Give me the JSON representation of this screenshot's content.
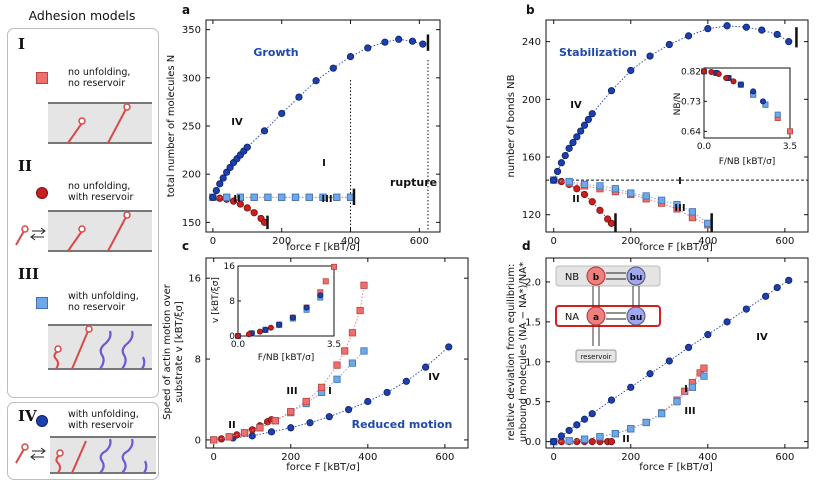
{
  "legend": {
    "title": "Adhesion models",
    "models": [
      {
        "numeral": "I",
        "line1": "no unfolding,",
        "line2": "no reservoir"
      },
      {
        "numeral": "II",
        "line1": "no unfolding,",
        "line2": "with reservoir"
      },
      {
        "numeral": "III",
        "line1": "with unfolding,",
        "line2": "no reservoir"
      },
      {
        "numeral": "IV",
        "line1": "with unfolding,",
        "line2": "with reservoir"
      }
    ]
  },
  "colors": {
    "I": "#ef6f6c",
    "II": "#c81f1f",
    "III": "#6ea8e8",
    "IV": "#1d3fb0",
    "annot": "#1f4aa8"
  },
  "panels": {
    "a": {
      "letter": "a",
      "annotation": "Growth",
      "ylabel": "total number of molecules N",
      "xlabel": "force F [kBT/σ]",
      "yticks": [
        "150",
        "200",
        "250",
        "300",
        "350"
      ],
      "xticks": [
        "0",
        "200",
        "400",
        "600"
      ],
      "labels": {
        "I": "I",
        "II": "II",
        "III": "III",
        "IV": "IV"
      },
      "rupture": "rupture"
    },
    "b": {
      "letter": "b",
      "annotation": "Stabilization",
      "ylabel": "number of bonds NB",
      "xlabel": "force F [kBT/σ]",
      "yticks": [
        "120",
        "160",
        "200",
        "240"
      ],
      "xticks": [
        "0",
        "200",
        "400",
        "600"
      ],
      "labels": {
        "I": "I",
        "II": "II",
        "III": "III",
        "IV": "IV"
      },
      "inset": {
        "ylabel": "NB/N",
        "xlabel": "F/NB [kBT/σ]",
        "yticks": [
          "0.64",
          "0.73",
          "0.82"
        ],
        "xticks": [
          "0.0",
          "3.5"
        ]
      }
    },
    "c": {
      "letter": "c",
      "annotation": "Reduced motion",
      "ylabel1": "Speed of actin motion over",
      "ylabel2": "substrate v [kBT/ξσ]",
      "xlabel": "force F [kBT/σ]",
      "yticks": [
        "0",
        "8",
        "16"
      ],
      "xticks": [
        "0",
        "200",
        "400",
        "600"
      ],
      "labels": {
        "I": "I",
        "II": "II",
        "III": "III",
        "IV": "IV"
      },
      "inset": {
        "ylabel": "v [kBT/ξσ]",
        "xlabel": "F/NB [kBT/σ]",
        "yticks": [
          "0",
          "8",
          "16"
        ],
        "xticks": [
          "0.0",
          "3.5"
        ]
      }
    },
    "d": {
      "letter": "d",
      "ylabel1": "relative deviation from equilibrium:",
      "ylabel2": "unbound molecules (NA − NA*)/NA*",
      "xlabel": "force F [kBT/σ]",
      "yticks": [
        "0.0",
        "0.5",
        "1.0",
        "1.5",
        "2.0"
      ],
      "xticks": [
        "0",
        "200",
        "400",
        "600"
      ],
      "labels": {
        "I": "I",
        "II": "II",
        "III": "III",
        "IV": "IV"
      },
      "scheme": {
        "NB": "NB",
        "NA": "NA",
        "b": "b",
        "bu": "bu",
        "a": "a",
        "au": "au",
        "reservoir": "reservoir"
      }
    }
  },
  "chart_data": [
    {
      "type": "scatter",
      "panel": "a",
      "xlabel": "force F [kBT/σ]",
      "ylabel": "total number of molecules N",
      "xlim": [
        -20,
        660
      ],
      "ylim": [
        140,
        360
      ],
      "series": [
        {
          "name": "I",
          "x": [
            0,
            40,
            80,
            120,
            160,
            200,
            240,
            280,
            320,
            360,
            400
          ],
          "y": [
            176,
            176,
            176,
            176,
            176,
            176,
            176,
            176,
            176,
            176,
            176
          ]
        },
        {
          "name": "II",
          "x": [
            0,
            20,
            40,
            60,
            80,
            100,
            120,
            140,
            150
          ],
          "y": [
            176,
            175,
            174,
            172,
            169,
            165,
            160,
            154,
            150
          ]
        },
        {
          "name": "III",
          "x": [
            0,
            40,
            80,
            120,
            160,
            200,
            240,
            280,
            320,
            360,
            400
          ],
          "y": [
            176,
            176,
            176,
            176,
            176,
            176,
            176,
            176,
            176,
            176,
            176
          ]
        },
        {
          "name": "IV",
          "x": [
            0,
            10,
            20,
            30,
            40,
            50,
            60,
            70,
            80,
            90,
            100,
            150,
            200,
            250,
            300,
            350,
            400,
            450,
            500,
            540,
            580,
            610
          ],
          "y": [
            176,
            183,
            190,
            196,
            202,
            207,
            212,
            216,
            220,
            224,
            228,
            245,
            263,
            280,
            297,
            310,
            322,
            331,
            337,
            340,
            338,
            335
          ]
        }
      ]
    },
    {
      "type": "scatter",
      "panel": "b",
      "xlabel": "force F [kBT/σ]",
      "ylabel": "number of bonds NB",
      "xlim": [
        -20,
        660
      ],
      "ylim": [
        108,
        255
      ],
      "series": [
        {
          "name": "I",
          "x": [
            0,
            40,
            80,
            120,
            160,
            200,
            240,
            280,
            320,
            360,
            400
          ],
          "y": [
            144,
            142,
            140,
            138,
            136,
            134,
            131,
            128,
            124,
            118,
            113
          ]
        },
        {
          "name": "II",
          "x": [
            0,
            20,
            40,
            60,
            80,
            100,
            120,
            140,
            150
          ],
          "y": [
            144,
            143,
            141,
            138,
            134,
            129,
            123,
            117,
            114
          ]
        },
        {
          "name": "III",
          "x": [
            0,
            40,
            80,
            120,
            160,
            200,
            240,
            280,
            320,
            360,
            400
          ],
          "y": [
            144,
            143,
            141,
            140,
            138,
            135,
            133,
            130,
            127,
            122,
            114
          ]
        },
        {
          "name": "IV",
          "x": [
            0,
            10,
            20,
            30,
            40,
            50,
            60,
            70,
            80,
            90,
            100,
            150,
            200,
            250,
            300,
            350,
            400,
            450,
            500,
            540,
            580,
            610
          ],
          "y": [
            144,
            150,
            156,
            161,
            166,
            170,
            174,
            178,
            182,
            186,
            190,
            206,
            220,
            230,
            238,
            244,
            249,
            251,
            250,
            248,
            245,
            240
          ]
        }
      ],
      "inset": {
        "xlabel": "F/NB [kBT/σ]",
        "ylabel": "NB/N",
        "xlim": [
          0,
          3.5
        ],
        "ylim": [
          0.62,
          0.83
        ],
        "series": [
          {
            "name": "I",
            "x": [
              0.0,
              0.5,
              1.0,
              1.5,
              2.0,
              2.5,
              3.0,
              3.5
            ],
            "y": [
              0.82,
              0.815,
              0.8,
              0.78,
              0.75,
              0.72,
              0.68,
              0.64
            ]
          },
          {
            "name": "II",
            "x": [
              0.0,
              0.3,
              0.6,
              0.9,
              1.2
            ],
            "y": [
              0.82,
              0.818,
              0.812,
              0.8,
              0.79
            ]
          },
          {
            "name": "III",
            "x": [
              0.0,
              0.5,
              1.0,
              1.5,
              2.0,
              2.5,
              3.0
            ],
            "y": [
              0.82,
              0.815,
              0.8,
              0.78,
              0.75,
              0.72,
              0.69
            ]
          },
          {
            "name": "IV",
            "x": [
              0.0,
              0.5,
              1.0,
              1.5,
              2.0,
              2.4
            ],
            "y": [
              0.82,
              0.815,
              0.8,
              0.78,
              0.76,
              0.73
            ]
          }
        ]
      }
    },
    {
      "type": "scatter",
      "panel": "c",
      "xlabel": "force F [kBT/σ]",
      "ylabel": "Speed of actin motion over substrate v [kBT/ξσ]",
      "xlim": [
        -20,
        660
      ],
      "ylim": [
        -0.8,
        18
      ],
      "series": [
        {
          "name": "I",
          "x": [
            0,
            40,
            80,
            120,
            160,
            200,
            240,
            280,
            320,
            340,
            360,
            380,
            390
          ],
          "y": [
            0,
            0.3,
            0.7,
            1.2,
            1.9,
            2.8,
            3.8,
            5.2,
            7.4,
            8.8,
            10.6,
            12.8,
            15.3
          ]
        },
        {
          "name": "II",
          "x": [
            0,
            20,
            40,
            60,
            80,
            100,
            120,
            140,
            150
          ],
          "y": [
            0,
            0.1,
            0.3,
            0.5,
            0.7,
            1.0,
            1.4,
            1.8,
            2.0
          ]
        },
        {
          "name": "III",
          "x": [
            0,
            40,
            80,
            120,
            160,
            200,
            240,
            280,
            320,
            360,
            390
          ],
          "y": [
            0,
            0.3,
            0.7,
            1.2,
            1.9,
            2.7,
            3.6,
            4.7,
            6.0,
            7.6,
            8.8
          ]
        },
        {
          "name": "IV",
          "x": [
            0,
            50,
            100,
            150,
            200,
            250,
            300,
            350,
            400,
            450,
            500,
            550,
            610
          ],
          "y": [
            0,
            0.2,
            0.4,
            0.8,
            1.2,
            1.7,
            2.3,
            3.0,
            3.8,
            4.7,
            5.8,
            7.2,
            9.2
          ]
        }
      ],
      "inset": {
        "xlabel": "F/NB [kBT/σ]",
        "ylabel": "v [kBT/ξσ]",
        "xlim": [
          0,
          3.5
        ],
        "ylim": [
          0,
          16
        ],
        "series": [
          {
            "name": "I",
            "x": [
              0.0,
              0.5,
              1.0,
              1.5,
              2.0,
              2.5,
              3.0,
              3.2,
              3.5
            ],
            "y": [
              0,
              0.6,
              1.4,
              2.6,
              4.2,
              6.5,
              10.0,
              12.5,
              15.8
            ]
          },
          {
            "name": "II",
            "x": [
              0.0,
              0.4,
              0.8,
              1.2
            ],
            "y": [
              0,
              0.4,
              1.0,
              1.9
            ]
          },
          {
            "name": "III",
            "x": [
              0.0,
              0.5,
              1.0,
              1.5,
              2.0,
              2.5,
              3.0
            ],
            "y": [
              0,
              0.6,
              1.4,
              2.5,
              4.0,
              6.0,
              8.8
            ]
          },
          {
            "name": "IV",
            "x": [
              0.0,
              0.5,
              1.0,
              1.5,
              2.0,
              2.5,
              3.0
            ],
            "y": [
              0,
              0.6,
              1.4,
              2.6,
              4.2,
              6.5,
              9.3
            ]
          }
        ]
      }
    },
    {
      "type": "scatter",
      "panel": "d",
      "xlabel": "force F [kBT/σ]",
      "ylabel": "relative deviation from equilibrium: unbound molecules (NA − NA*)/NA*",
      "xlim": [
        -20,
        660
      ],
      "ylim": [
        -0.08,
        2.3
      ],
      "series": [
        {
          "name": "I",
          "x": [
            0,
            40,
            80,
            120,
            160,
            200,
            240,
            280,
            320,
            340,
            360,
            380,
            390
          ],
          "y": [
            0,
            0.01,
            0.03,
            0.06,
            0.1,
            0.16,
            0.24,
            0.36,
            0.52,
            0.63,
            0.74,
            0.86,
            0.92
          ]
        },
        {
          "name": "II",
          "x": [
            0,
            20,
            40,
            60,
            80,
            100,
            120,
            140,
            150
          ],
          "y": [
            0,
            0,
            0,
            0,
            0,
            0,
            0,
            0,
            0
          ]
        },
        {
          "name": "III",
          "x": [
            0,
            40,
            80,
            120,
            160,
            200,
            240,
            280,
            320,
            360,
            390
          ],
          "y": [
            0,
            0.01,
            0.03,
            0.06,
            0.1,
            0.16,
            0.24,
            0.35,
            0.5,
            0.68,
            0.82
          ]
        },
        {
          "name": "IV",
          "x": [
            0,
            20,
            40,
            60,
            80,
            100,
            150,
            200,
            250,
            300,
            350,
            400,
            450,
            500,
            550,
            580,
            610
          ],
          "y": [
            0,
            0.07,
            0.14,
            0.21,
            0.28,
            0.35,
            0.52,
            0.68,
            0.85,
            1.01,
            1.18,
            1.34,
            1.5,
            1.66,
            1.82,
            1.93,
            2.02
          ]
        }
      ]
    }
  ]
}
